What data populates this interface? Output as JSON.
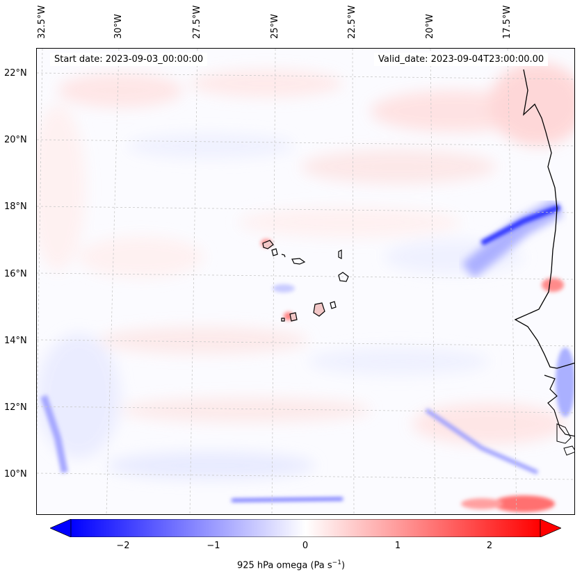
{
  "map": {
    "start_date": "Start date: 2023-09-03_00:00:00",
    "valid_date": "Valid_date: 2023-09-04T23:00:00.00",
    "variable": "925 hPa omega (Pa s",
    "variable_sup": "−1",
    "variable_close": ")",
    "longitudes": [
      "32.5°W",
      "30°W",
      "27.5°W",
      "25°W",
      "22.5°W",
      "20°W",
      "17.5°W"
    ],
    "latitudes": [
      "22°N",
      "20°N",
      "18°N",
      "16°N",
      "14°N",
      "12°N",
      "10°N"
    ]
  },
  "colorbar": {
    "ticks": [
      "−2",
      "−1",
      "0",
      "1",
      "2"
    ],
    "min": -2.75,
    "max": 2.75,
    "low_color": "#0000ff",
    "mid_color": "#ffffff",
    "high_color": "#ff0000"
  }
}
